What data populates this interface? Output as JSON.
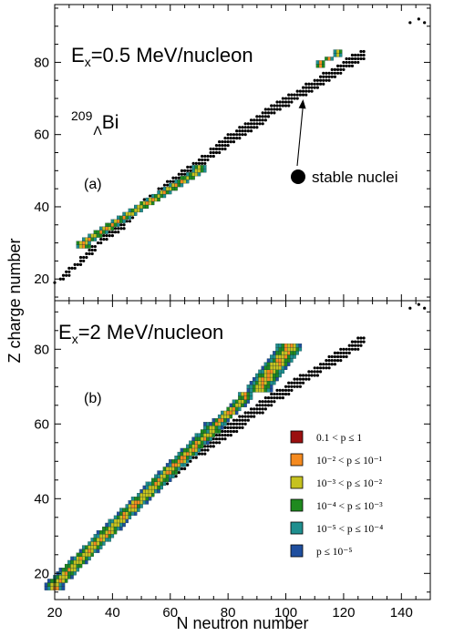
{
  "chart_data": {
    "type": "scatter",
    "xlabel": "N neutron number",
    "ylabel": "Z charge number",
    "xlim": [
      20,
      150
    ],
    "ylim_top": [
      14,
      96
    ],
    "ylim_bottom": [
      13,
      93
    ],
    "xticks": [
      20,
      40,
      60,
      80,
      100,
      120,
      140
    ],
    "yticks": [
      20,
      40,
      60,
      80
    ],
    "panels": [
      {
        "id": "a",
        "letter": "(a)",
        "title_main": "E",
        "title_sub": "x",
        "title_rest": "=0.5 MeV/nucleon",
        "label_sup": "209",
        "label_sub": "Λ",
        "label_main": "Bi",
        "annotation": "stable nuclei",
        "arrow_target": [
          106,
          70
        ],
        "fragment_bands": [
          {
            "from": [
              30,
              30
            ],
            "to": [
              70,
              50
            ],
            "halfwidth": 2.6
          },
          {
            "from": [
              112,
              80
            ],
            "to": [
              118,
              82
            ],
            "halfwidth": 1.4
          }
        ]
      },
      {
        "id": "b",
        "letter": "(b)",
        "title_main": "E",
        "title_sub": "x",
        "title_rest": "=2 MeV/nucleon",
        "fragment_bands": [
          {
            "from": [
              20,
              17
            ],
            "to": [
              75,
              59
            ],
            "halfwidth": 3.4
          },
          {
            "from": [
              75,
              59
            ],
            "to": [
              86,
              67
            ],
            "halfwidth": 2.8
          },
          {
            "from": [
              91,
              70
            ],
            "to": [
              101,
              80
            ],
            "halfwidth": 4.2
          }
        ]
      }
    ],
    "legend": [
      {
        "label": "0.1 < p ≤ 1",
        "color": "#9b1010"
      },
      {
        "label": "10⁻² < p ≤ 10⁻¹",
        "color": "#f58a1f"
      },
      {
        "label": "10⁻³ < p ≤ 10⁻²",
        "color": "#c6c21f"
      },
      {
        "label": "10⁻⁴ < p ≤ 10⁻³",
        "color": "#1f8a1f"
      },
      {
        "label": "10⁻⁵ < p ≤ 10⁻⁴",
        "color": "#1f8f8f"
      },
      {
        "label": "p ≤ 10⁻⁵",
        "color": "#1f4f9f"
      }
    ],
    "stable_color": "#000000"
  }
}
